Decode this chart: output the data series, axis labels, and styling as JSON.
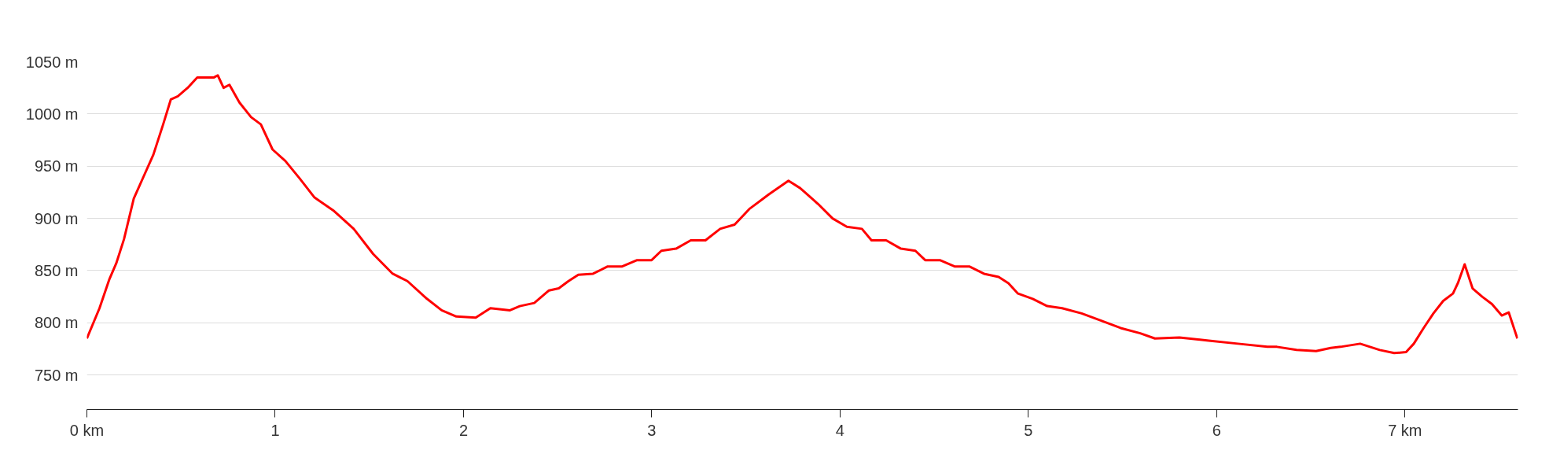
{
  "chart_data": {
    "type": "line",
    "x": [
      0,
      0.067,
      0.12,
      0.156,
      0.197,
      0.249,
      0.301,
      0.353,
      0.405,
      0.446,
      0.483,
      0.535,
      0.586,
      0.638,
      0.675,
      0.695,
      0.726,
      0.757,
      0.81,
      0.872,
      0.924,
      0.986,
      1.054,
      1.131,
      1.209,
      1.313,
      1.417,
      1.52,
      1.624,
      1.702,
      1.806,
      1.884,
      1.962,
      2.065,
      2.143,
      2.247,
      2.299,
      2.376,
      2.454,
      2.506,
      2.558,
      2.61,
      2.688,
      2.766,
      2.843,
      2.922,
      2.999,
      3.051,
      3.129,
      3.207,
      3.285,
      3.363,
      3.44,
      3.518,
      3.622,
      3.726,
      3.788,
      3.882,
      3.96,
      4.036,
      4.116,
      4.167,
      4.245,
      4.323,
      4.4,
      4.452,
      4.53,
      4.608,
      4.686,
      4.764,
      4.842,
      4.894,
      4.945,
      5.023,
      5.1,
      5.179,
      5.283,
      5.387,
      5.49,
      5.594,
      5.672,
      5.802,
      5.958,
      6.113,
      6.269,
      6.32,
      6.424,
      6.528,
      6.606,
      6.658,
      6.762,
      6.866,
      6.943,
      7.006,
      7.047,
      7.099,
      7.151,
      7.203,
      7.255,
      7.281,
      7.317,
      7.359,
      7.41,
      7.462,
      7.514,
      7.551,
      7.597
    ],
    "series": [
      {
        "color": "#ff0000",
        "values": [
          785,
          814,
          842,
          857,
          880,
          919,
          940,
          961,
          990,
          1014,
          1017,
          1025,
          1035,
          1035,
          1035,
          1037,
          1025,
          1028,
          1011,
          997,
          990,
          966,
          955,
          938,
          920,
          907,
          890,
          866,
          847,
          840,
          823,
          812,
          806,
          805,
          814,
          812,
          816,
          819,
          831,
          833,
          840,
          846,
          847,
          854,
          854,
          860,
          860,
          869,
          871,
          879,
          879,
          890,
          894,
          909,
          923,
          936,
          929,
          914,
          900,
          892,
          890,
          879,
          879,
          871,
          869,
          860,
          860,
          854,
          854,
          847,
          844,
          838,
          828,
          823,
          816,
          814,
          809,
          802,
          795,
          790,
          785,
          786,
          783,
          780,
          777,
          777,
          774,
          773,
          776,
          777,
          780,
          774,
          771,
          772,
          780,
          795,
          809,
          821,
          828,
          838,
          856,
          833,
          825,
          818,
          807,
          810,
          785
        ]
      }
    ],
    "xlim": [
      0,
      7.6
    ],
    "ylim": [
      717,
      1050
    ],
    "xticks": [
      {
        "value": 0,
        "label": "0 km"
      },
      1,
      2,
      3,
      4,
      5,
      6,
      {
        "value": 7,
        "label": "7 km"
      }
    ],
    "yticks": [
      {
        "value": 750,
        "label": "750 m"
      },
      {
        "value": 800,
        "label": "800 m"
      },
      {
        "value": 850,
        "label": "850 m"
      },
      {
        "value": 900,
        "label": "900 m"
      },
      {
        "value": 950,
        "label": "950 m"
      },
      {
        "value": 1000,
        "label": "1000 m"
      },
      {
        "value": 1050,
        "label": "1050 m"
      }
    ],
    "grid": "y",
    "marker": "none",
    "line_style": "solid"
  }
}
